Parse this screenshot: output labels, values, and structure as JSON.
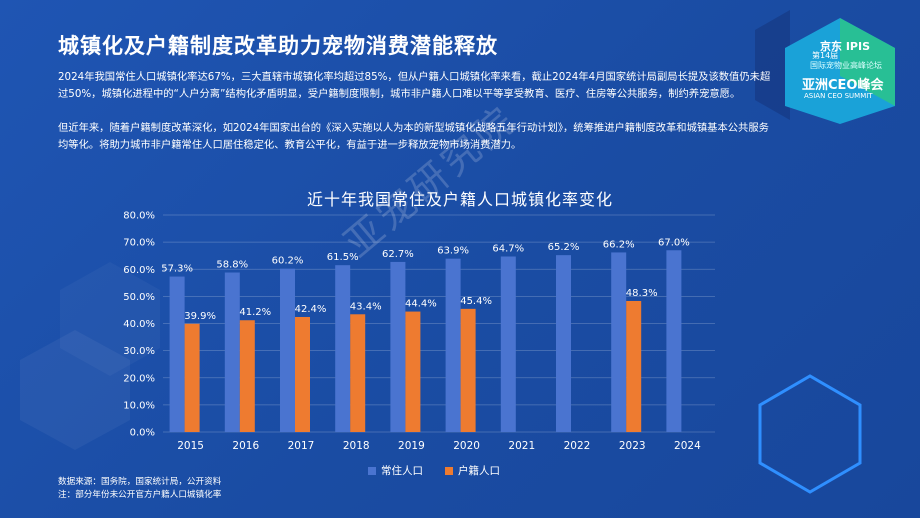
{
  "page": {
    "title": "城镇化及户籍制度改革助力宠物消费潜能释放",
    "paragraph1": "2024年我国常住人口城镇化率达67%，三大直辖市城镇化率均超过85%，但从户籍人口城镇化率来看，截止2024年4月国家统计局副局长提及该数值仍未超过50%，城镇化进程中的“人户分离”结构化矛盾明显，受户籍制度限制，城市非户籍人口难以平等享受教育、医疗、住房等公共服务，制约养宠意愿。",
    "paragraph2": "但近年来，随着户籍制度改革深化，如2024年国家出台的《深入实施以人为本的新型城镇化战略五年行动计划》，统筹推进户籍制度改革和城镇基本公共服务均等化。将助力城市非户籍常住人口居住稳定化、教育公平化，有益于进一步释放宠物市场消费潜力。",
    "source_note": "数据来源：国务院，国家统计局，公开资料",
    "note": "注：部分年份未公开官方户籍人口城镇化率",
    "watermark": "亚宠研究院"
  },
  "logo": {
    "line1": "京东 IPIS",
    "line2": "第14届",
    "line3": "国际宠物业高峰论坛",
    "line4": "亚洲CEO峰会",
    "line5": "ASIAN CEO SUMMIT"
  },
  "colors": {
    "resident": "#4a74d0",
    "household": "#ee7b30",
    "background": "#1c4fa8"
  },
  "chart_data": {
    "type": "bar",
    "title": "近十年我国常住及户籍人口城镇化率变化",
    "categories": [
      "2015",
      "2016",
      "2017",
      "2018",
      "2019",
      "2020",
      "2021",
      "2022",
      "2023",
      "2024"
    ],
    "series": [
      {
        "name": "常住人口",
        "values": [
          57.3,
          58.8,
          60.2,
          61.5,
          62.7,
          63.9,
          64.7,
          65.2,
          66.2,
          67.0
        ],
        "labels": [
          "57.3%",
          "58.8%",
          "60.2%",
          "61.5%",
          "62.7%",
          "63.9%",
          "64.7%",
          "65.2%",
          "66.2%",
          "67.0%"
        ]
      },
      {
        "name": "户籍人口",
        "values": [
          39.9,
          41.2,
          42.4,
          43.4,
          44.4,
          45.4,
          null,
          null,
          48.3,
          null
        ],
        "labels": [
          "39.9%",
          "41.2%",
          "42.4%",
          "43.4%",
          "44.4%",
          "45.4%",
          "",
          "",
          "48.3%",
          ""
        ]
      }
    ],
    "y_ticks": [
      "0.0%",
      "10.0%",
      "20.0%",
      "30.0%",
      "40.0%",
      "50.0%",
      "60.0%",
      "70.0%",
      "80.0%"
    ],
    "ylim": [
      0,
      80
    ],
    "grid": true,
    "legend": "bottom"
  }
}
